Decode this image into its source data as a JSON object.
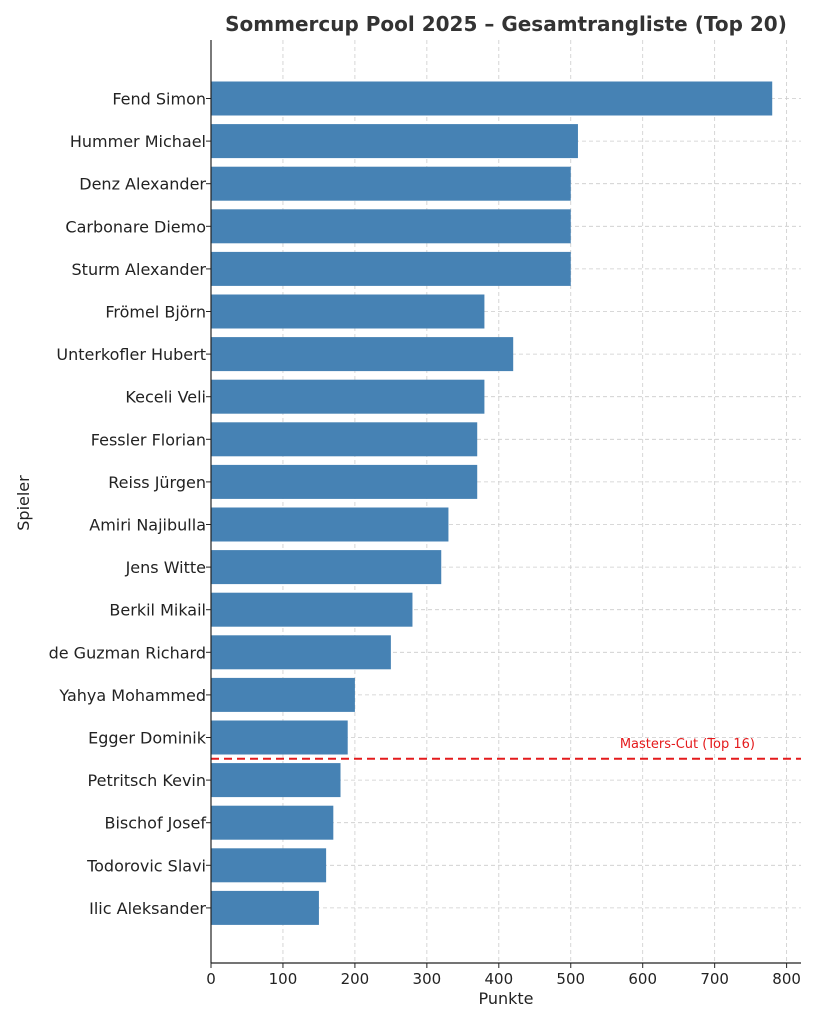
{
  "chart_data": {
    "type": "bar",
    "orientation": "horizontal",
    "title": "Sommercup Pool 2025 – Gesamtrangliste (Top 20)",
    "xlabel": "Punkte",
    "ylabel": "Spieler",
    "xlim": [
      0,
      820
    ],
    "xticks": [
      0,
      100,
      200,
      300,
      400,
      500,
      600,
      700,
      800
    ],
    "grid": true,
    "bar_color": "#4682b4",
    "categories": [
      "Fend Simon",
      "Hummer Michael",
      "Denz Alexander",
      "Carbonare Diemo",
      "Sturm Alexander",
      "Frömel Björn",
      "Unterkofler Hubert",
      "Keceli Veli",
      "Fessler Florian",
      "Reiss Jürgen",
      "Amiri Najibulla",
      "Jens Witte",
      "Berkil Mikail",
      "de Guzman Richard",
      "Yahya Mohammed",
      "Egger Dominik",
      "Petritsch Kevin",
      "Bischof Josef",
      "Todorovic Slavi",
      "Ilic Aleksander"
    ],
    "values": [
      780,
      510,
      500,
      500,
      500,
      380,
      420,
      380,
      370,
      370,
      330,
      320,
      280,
      250,
      200,
      190,
      180,
      170,
      160,
      150
    ],
    "annotations": [
      {
        "text": "Masters-Cut (Top 16)",
        "type": "horizontal-line",
        "between_rank": [
          16,
          17
        ],
        "color": "#e41a1c",
        "style": "dashed"
      }
    ]
  }
}
